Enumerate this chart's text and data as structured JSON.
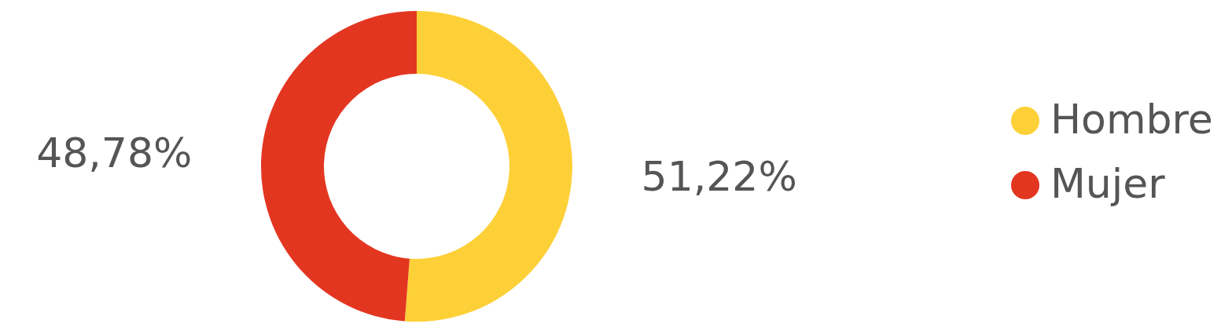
{
  "chart_data": {
    "type": "donut",
    "categories": [
      "Hombre",
      "Mujer"
    ],
    "values": [
      51.22,
      48.78
    ],
    "colors": [
      "#fdd037",
      "#e33621"
    ],
    "value_labels": [
      "51,22%",
      "48,78%"
    ],
    "legend": "right"
  }
}
